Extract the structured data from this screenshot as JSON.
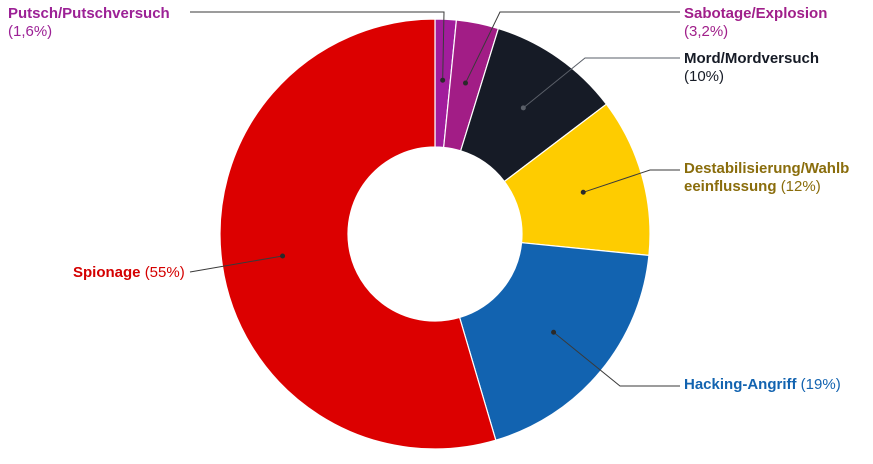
{
  "chart_data": {
    "type": "pie",
    "donut": true,
    "title": "",
    "slices": [
      {
        "name": "Putsch/Putschversuch",
        "value": 1.6,
        "pct": "(1,6%)",
        "color": "#a21d9c",
        "label_color": "#9c2196"
      },
      {
        "name": "Sabotage/Explosion",
        "value": 3.2,
        "pct": "(3,2%)",
        "color": "#a21d86",
        "label_color": "#a01f8a"
      },
      {
        "name": "Mord/Mordversuch",
        "value": 10,
        "pct": "(10%)",
        "color": "#161b26",
        "label_color": "#161b26"
      },
      {
        "name": "Destabilisierung/Wahlbeeinflussung",
        "name_line1": "Destabilisierung/Wahlb",
        "name_line2": "eeinflussung",
        "value": 12,
        "pct": "(12%)",
        "color": "#fecc00",
        "label_color": "#8a6d0c"
      },
      {
        "name": "Hacking-Angriff",
        "value": 19,
        "pct": "(19%)",
        "color": "#1263b0",
        "label_color": "#1263b0"
      },
      {
        "name": "Spionage",
        "value": 55,
        "pct": "(55%)",
        "color": "#dc0000",
        "label_color": "#d40000"
      }
    ]
  }
}
